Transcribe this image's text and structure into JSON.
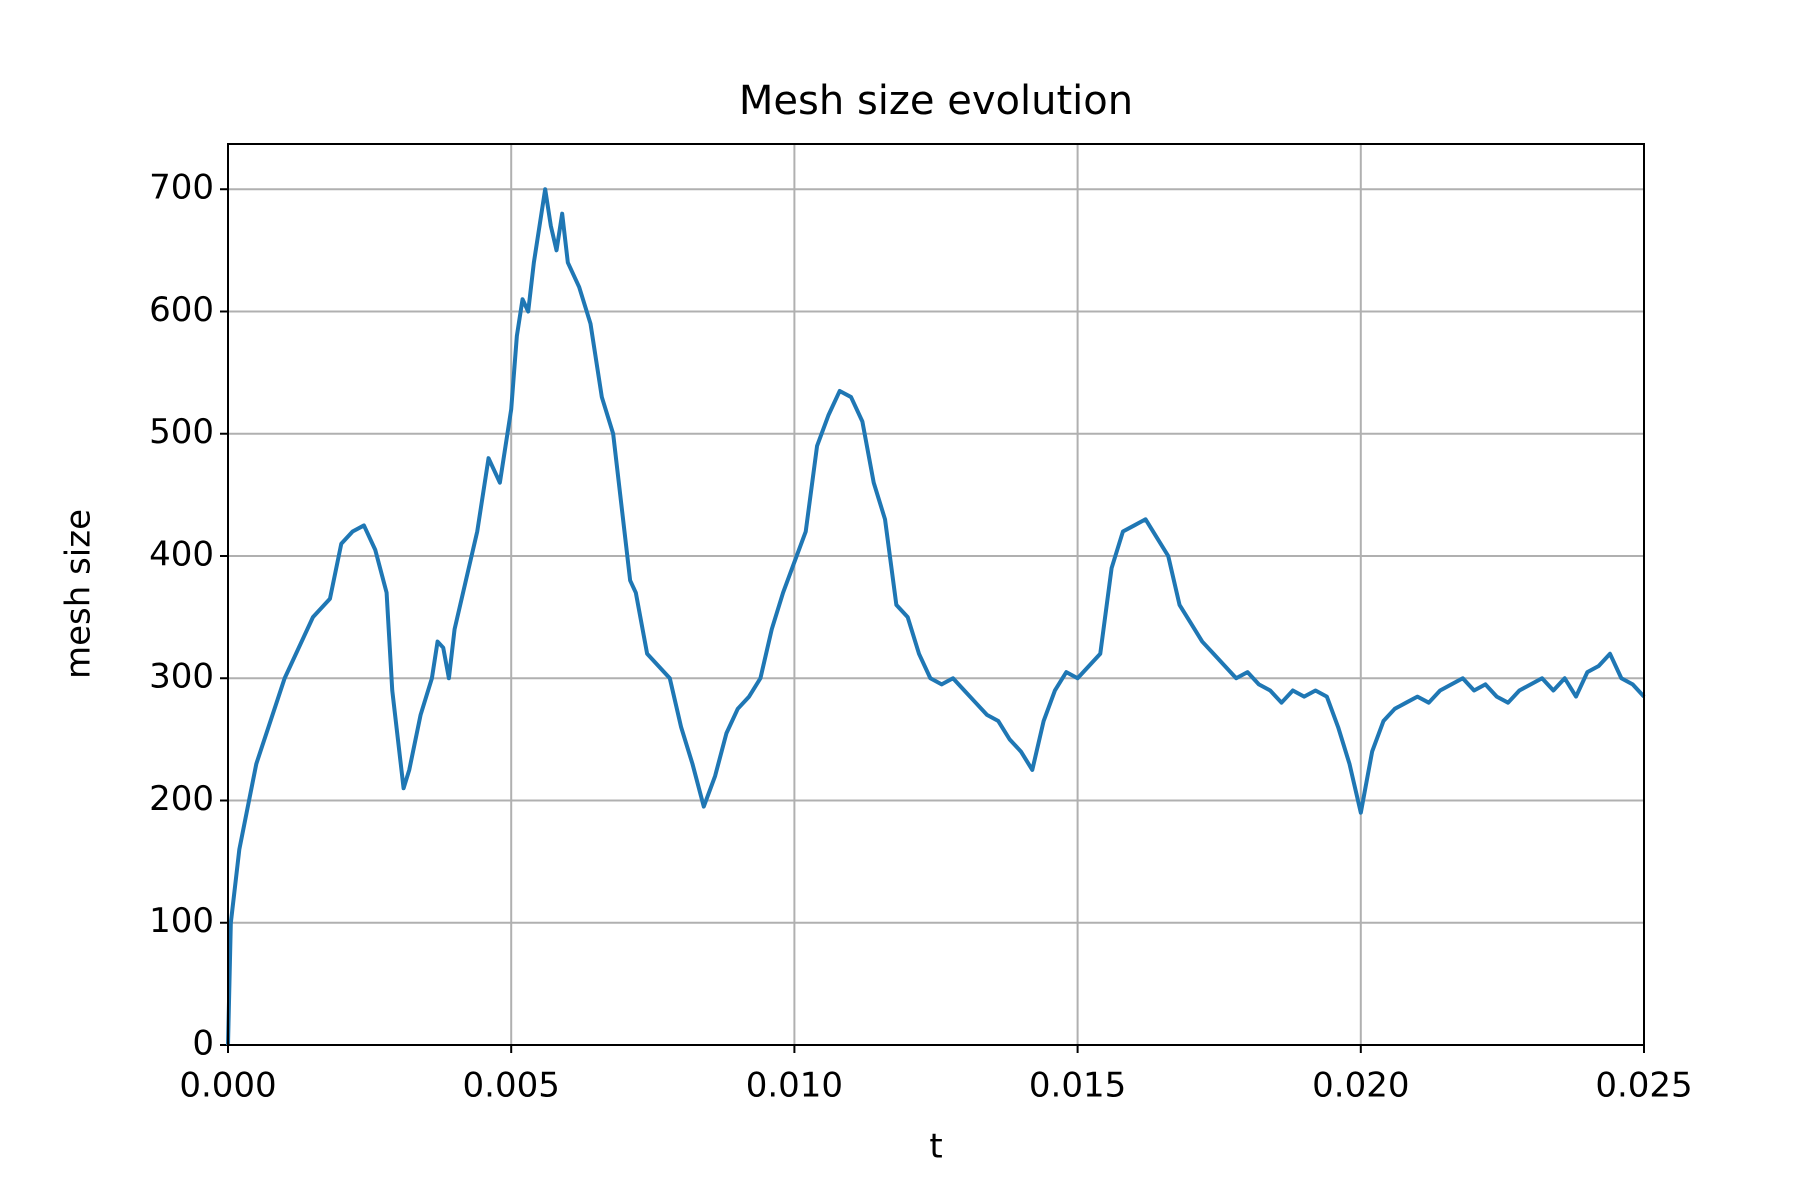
{
  "chart_data": {
    "type": "line",
    "title": "Mesh size evolution",
    "x_label": "t",
    "y_label": "mesh size",
    "x": [
      0,
      5e-05,
      0.0002,
      0.0005,
      0.001,
      0.0015,
      0.0018,
      0.002,
      0.0022,
      0.0024,
      0.0026,
      0.0028,
      0.0029,
      0.003,
      0.0031,
      0.0032,
      0.0034,
      0.0035,
      0.0036,
      0.0037,
      0.0038,
      0.0039,
      0.004,
      0.0042,
      0.0044,
      0.0046,
      0.0048,
      0.005,
      0.0051,
      0.0052,
      0.0053,
      0.0054,
      0.0055,
      0.0056,
      0.0057,
      0.0058,
      0.0059,
      0.006,
      0.0062,
      0.0064,
      0.0066,
      0.0068,
      0.007,
      0.0071,
      0.0072,
      0.0074,
      0.0076,
      0.0078,
      0.008,
      0.0082,
      0.0084,
      0.0086,
      0.0088,
      0.009,
      0.0092,
      0.0094,
      0.0096,
      0.0098,
      0.01,
      0.0102,
      0.0104,
      0.0106,
      0.0108,
      0.011,
      0.0112,
      0.0114,
      0.0116,
      0.0118,
      0.012,
      0.0122,
      0.0124,
      0.0126,
      0.0128,
      0.013,
      0.0132,
      0.0134,
      0.0136,
      0.0138,
      0.014,
      0.0142,
      0.0144,
      0.0146,
      0.0148,
      0.015,
      0.0152,
      0.0154,
      0.0156,
      0.0158,
      0.016,
      0.0162,
      0.0164,
      0.0166,
      0.0168,
      0.017,
      0.0172,
      0.0174,
      0.0176,
      0.0178,
      0.018,
      0.0182,
      0.0184,
      0.0186,
      0.0188,
      0.019,
      0.0192,
      0.0194,
      0.0196,
      0.0198,
      0.02,
      0.0202,
      0.0204,
      0.0206,
      0.0208,
      0.021,
      0.0212,
      0.0214,
      0.0216,
      0.0218,
      0.022,
      0.0222,
      0.0224,
      0.0226,
      0.0228,
      0.023,
      0.0232,
      0.0234,
      0.0236,
      0.0238,
      0.024,
      0.0242,
      0.0244,
      0.0246,
      0.0248,
      0.025
    ],
    "series": [
      {
        "color": "#1f77b4",
        "values": [
          0,
          100,
          160,
          230,
          300,
          350,
          365,
          410,
          420,
          425,
          405,
          370,
          290,
          250,
          210,
          225,
          270,
          285,
          300,
          330,
          325,
          300,
          340,
          380,
          420,
          480,
          460,
          520,
          580,
          610,
          600,
          640,
          670,
          700,
          670,
          650,
          680,
          640,
          620,
          590,
          530,
          500,
          420,
          380,
          370,
          320,
          310,
          300,
          260,
          230,
          195,
          220,
          255,
          275,
          285,
          300,
          340,
          370,
          395,
          420,
          490,
          515,
          535,
          530,
          510,
          460,
          430,
          360,
          350,
          320,
          300,
          295,
          300,
          290,
          280,
          270,
          265,
          250,
          240,
          225,
          265,
          290,
          305,
          300,
          310,
          320,
          390,
          420,
          425,
          430,
          415,
          400,
          360,
          345,
          330,
          320,
          310,
          300,
          305,
          295,
          290,
          280,
          290,
          285,
          290,
          285,
          260,
          230,
          190,
          240,
          265,
          275,
          280,
          285,
          280,
          290,
          295,
          300,
          290,
          295,
          285,
          280,
          290,
          295,
          300,
          290,
          300,
          285,
          305,
          310,
          320,
          300,
          295,
          285
        ]
      }
    ],
    "xlim": [
      0,
      0.025
    ],
    "ylim": [
      0,
      737
    ],
    "xticks": [
      {
        "value": 0,
        "label": "0.000"
      },
      {
        "value": 0.005,
        "label": "0.005"
      },
      {
        "value": 0.01,
        "label": "0.010"
      },
      {
        "value": 0.015,
        "label": "0.015"
      },
      {
        "value": 0.02,
        "label": "0.020"
      },
      {
        "value": 0.025,
        "label": "0.025"
      }
    ],
    "yticks": [
      0,
      100,
      200,
      300,
      400,
      500,
      600,
      700
    ],
    "grid": true
  }
}
